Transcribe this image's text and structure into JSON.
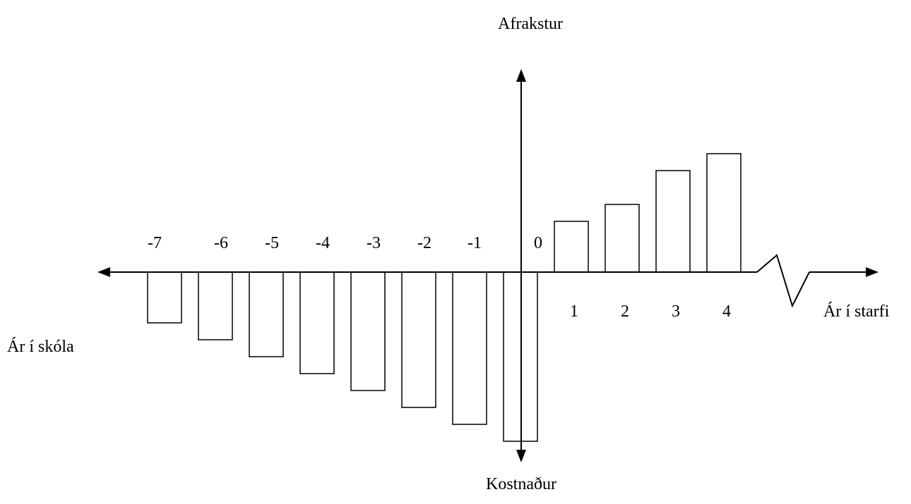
{
  "labels": {
    "top_axis": "Afrakstur",
    "bottom_axis": "Kostnaður",
    "left_axis": "Ár í skóla",
    "right_axis": "Ár í starfi"
  },
  "chart_data": {
    "type": "bar",
    "school_years": {
      "categories": [
        "-7",
        "-6",
        "-5",
        "-4",
        "-3",
        "-2",
        "-1",
        "0"
      ],
      "values": [
        -3,
        -4,
        -5,
        -6,
        -7,
        -8,
        -9,
        -10
      ]
    },
    "work_years": {
      "categories": [
        "1",
        "2",
        "3",
        "4"
      ],
      "values": [
        3,
        4,
        6,
        7
      ]
    },
    "axis_break": true,
    "ylim": [
      -10,
      7
    ]
  },
  "colors": {
    "ink": "#000000",
    "background": "#ffffff"
  }
}
